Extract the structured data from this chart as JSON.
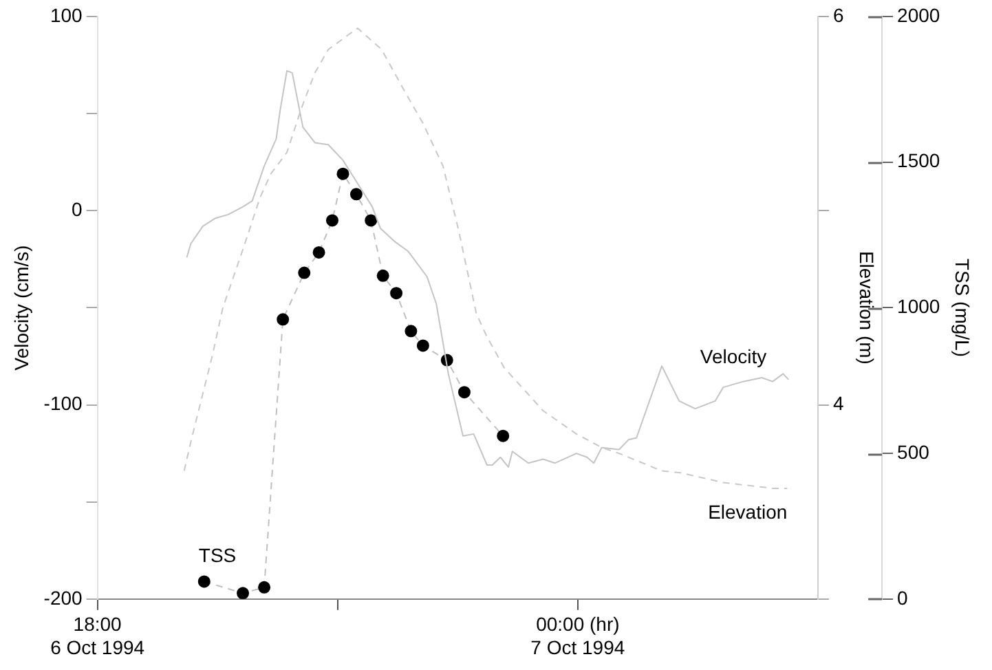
{
  "chart_data": {
    "type": "line",
    "ylabel": "Velocity (cm/s)",
    "y2label": "Elevation (m)",
    "y3label": "TSS (mg/L)",
    "xlim": [
      "1994-10-06T18:00",
      "1994-10-07T03:00"
    ],
    "xticks": [
      {
        "value": "1994-10-06T18:00",
        "label": "18:00\n6 Oct 1994"
      },
      {
        "value": "1994-10-06T21:00",
        "label": null
      },
      {
        "value": "1994-10-07T00:00",
        "label": "00:00 (hr)\n7 Oct 1994"
      }
    ],
    "ylim": [
      -200,
      100
    ],
    "yticks": [
      -200,
      {
        "value": -150,
        "label": null
      },
      -100,
      {
        "value": -50,
        "label": null
      },
      0,
      {
        "value": 50,
        "label": null
      },
      100
    ],
    "y2lim": [
      3,
      6
    ],
    "y2ticks": [
      {
        "value": 3,
        "label": null
      },
      4,
      {
        "value": 5,
        "label": null
      },
      6
    ],
    "y3lim": [
      0,
      2000
    ],
    "y3ticks": [
      0,
      500,
      1000,
      1500,
      2000
    ],
    "grid": false,
    "legend": false,
    "series": [
      {
        "name": "Velocity",
        "color": "#c4c4c4",
        "line_style": "solid",
        "marker": "none",
        "x": [
          "1994-10-06T19:07",
          "1994-10-06T19:10",
          "1994-10-06T19:19",
          "1994-10-06T19:28",
          "1994-10-06T19:38",
          "1994-10-06T19:49",
          "1994-10-06T19:56",
          "1994-10-06T20:05",
          "1994-10-06T20:14",
          "1994-10-06T20:17",
          "1994-10-06T20:22",
          "1994-10-06T20:26",
          "1994-10-06T20:34",
          "1994-10-06T20:43",
          "1994-10-06T20:53",
          "1994-10-06T21:04",
          "1994-10-06T21:15",
          "1994-10-06T21:26",
          "1994-10-06T21:32",
          "1994-10-06T21:43",
          "1994-10-06T21:53",
          "1994-10-06T22:07",
          "1994-10-06T22:14",
          "1994-10-06T22:23",
          "1994-10-06T22:34",
          "1994-10-06T22:42",
          "1994-10-06T22:52",
          "1994-10-06T22:56",
          "1994-10-06T23:02",
          "1994-10-06T23:08",
          "1994-10-06T23:11",
          "1994-10-06T23:23",
          "1994-10-06T23:34",
          "1994-10-06T23:43",
          "1994-10-06T23:59",
          "1994-10-07T00:07",
          "1994-10-07T00:12",
          "1994-10-07T00:18",
          "1994-10-07T00:31",
          "1994-10-07T00:38",
          "1994-10-07T00:44",
          "1994-10-07T01:03",
          "1994-10-07T01:16",
          "1994-10-07T01:28",
          "1994-10-07T01:43",
          "1994-10-07T01:49",
          "1994-10-07T02:04",
          "1994-10-07T02:18",
          "1994-10-07T02:26",
          "1994-10-07T02:34",
          "1994-10-07T02:38"
        ],
        "values": [
          -24,
          -17,
          -8,
          -4,
          -2,
          2,
          5,
          23,
          37,
          52,
          72,
          71,
          43,
          35,
          34,
          26,
          14,
          2,
          -9,
          -16,
          -21,
          -34,
          -48,
          -84,
          -116,
          -115,
          -131,
          -131,
          -127,
          -132,
          -124,
          -130,
          -128,
          -130,
          -125,
          -127,
          -130,
          -122,
          -123,
          -118,
          -117,
          -80,
          -98,
          -102,
          -98,
          -91,
          -88,
          -86,
          -88,
          -84,
          -87
        ]
      },
      {
        "name": "Elevation",
        "axis": "y2",
        "color": "#c8c8c8",
        "line_style": "dashed",
        "marker": "none",
        "x": [
          "1994-10-06T19:05",
          "1994-10-06T19:10",
          "1994-10-06T19:26",
          "1994-10-06T19:34",
          "1994-10-06T19:49",
          "1994-10-06T20:02",
          "1994-10-06T20:10",
          "1994-10-06T20:22",
          "1994-10-06T20:33",
          "1994-10-06T20:43",
          "1994-10-06T20:53",
          "1994-10-06T21:15",
          "1994-10-06T21:33",
          "1994-10-06T21:49",
          "1994-10-06T22:04",
          "1994-10-06T22:19",
          "1994-10-06T22:31",
          "1994-10-06T22:44",
          "1994-10-06T22:52",
          "1994-10-06T23:05",
          "1994-10-06T23:34",
          "1994-10-06T23:59",
          "1994-10-07T00:18",
          "1994-10-07T00:31",
          "1994-10-07T01:03",
          "1994-10-07T01:17",
          "1994-10-07T01:49",
          "1994-10-07T02:26",
          "1994-10-07T02:37"
        ],
        "values": [
          3.66,
          3.81,
          4.25,
          4.5,
          4.8,
          5.07,
          5.19,
          5.3,
          5.53,
          5.71,
          5.83,
          5.94,
          5.83,
          5.63,
          5.45,
          5.23,
          4.89,
          4.47,
          4.35,
          4.19,
          3.97,
          3.85,
          3.78,
          3.75,
          3.66,
          3.65,
          3.6,
          3.57,
          3.57
        ]
      },
      {
        "name": "TSS",
        "axis": "y3",
        "color": "#000000",
        "line_style": "dashed",
        "marker": "circle",
        "x": [
          "1994-10-06T19:20",
          "1994-10-06T19:49",
          "1994-10-06T20:05",
          "1994-10-06T20:19",
          "1994-10-06T20:35",
          "1994-10-06T20:46",
          "1994-10-06T20:56",
          "1994-10-06T21:04",
          "1994-10-06T21:14",
          "1994-10-06T21:25",
          "1994-10-06T21:34",
          "1994-10-06T21:44",
          "1994-10-06T21:55",
          "1994-10-06T22:04",
          "1994-10-06T22:22",
          "1994-10-06T22:35",
          "1994-10-06T23:04"
        ],
        "values": [
          60,
          20,
          40,
          960,
          1120,
          1190,
          1300,
          1460,
          1390,
          1300,
          1110,
          1050,
          920,
          870,
          820,
          710,
          560
        ]
      }
    ]
  }
}
